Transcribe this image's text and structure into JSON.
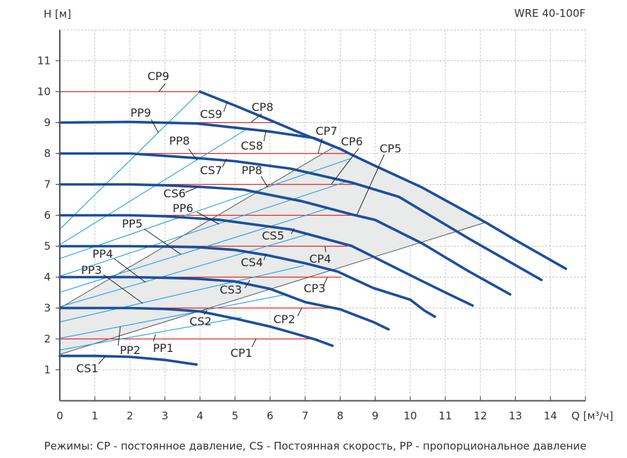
{
  "chart_data": {
    "type": "line",
    "title": "WRE 40-100F",
    "xlabel": "Q [м³/ч]",
    "ylabel": "H [м]",
    "xlim": [
      0,
      15
    ],
    "ylim": [
      0,
      12
    ],
    "x_ticks": [
      "0",
      "1",
      "2",
      "3",
      "4",
      "5",
      "6",
      "7",
      "8",
      "9",
      "10",
      "11",
      "12",
      "13",
      "14"
    ],
    "y_ticks": [
      "1",
      "2",
      "3",
      "4",
      "5",
      "6",
      "7",
      "8",
      "9",
      "10",
      "11"
    ],
    "grid": true,
    "colors": {
      "cs": "#1b4f9c",
      "pp": "#1ca3e0",
      "cp": "#e8262b",
      "area": "#e9eaea",
      "area_edge": "#555555"
    },
    "cs_curves": [
      {
        "name": "CS1",
        "points": [
          [
            0,
            1.45
          ],
          [
            1,
            1.45
          ],
          [
            2,
            1.42
          ],
          [
            3,
            1.32
          ],
          [
            3.9,
            1.17
          ]
        ]
      },
      {
        "name": "CS2",
        "points": [
          [
            0,
            3.0
          ],
          [
            2,
            3.0
          ],
          [
            3,
            2.97
          ],
          [
            4,
            2.89
          ],
          [
            5,
            2.66
          ],
          [
            6,
            2.4
          ],
          [
            6.6,
            2.21
          ],
          [
            7.3,
            1.98
          ],
          [
            7.78,
            1.78
          ]
        ]
      },
      {
        "name": "CS3",
        "points": [
          [
            0,
            4.0
          ],
          [
            2,
            4.0
          ],
          [
            3,
            3.98
          ],
          [
            4,
            3.94
          ],
          [
            5,
            3.86
          ],
          [
            6,
            3.62
          ],
          [
            7,
            3.19
          ],
          [
            8,
            2.96
          ],
          [
            8.94,
            2.55
          ],
          [
            9.38,
            2.31
          ]
        ]
      },
      {
        "name": "CS4",
        "points": [
          [
            0,
            5.0
          ],
          [
            2,
            5.0
          ],
          [
            3,
            4.99
          ],
          [
            3.92,
            4.97
          ],
          [
            5,
            4.88
          ],
          [
            5.92,
            4.71
          ],
          [
            7,
            4.45
          ],
          [
            7.93,
            4.18
          ],
          [
            8.94,
            3.65
          ],
          [
            10,
            3.27
          ],
          [
            10.4,
            2.92
          ],
          [
            10.7,
            2.72
          ]
        ]
      },
      {
        "name": "CS5",
        "points": [
          [
            0,
            6.0
          ],
          [
            2,
            6.0
          ],
          [
            3,
            5.97
          ],
          [
            4.58,
            5.85
          ],
          [
            6.59,
            5.54
          ],
          [
            8.33,
            5.01
          ],
          [
            9,
            4.63
          ],
          [
            10.34,
            3.87
          ],
          [
            11.1,
            3.45
          ],
          [
            11.78,
            3.08
          ]
        ]
      },
      {
        "name": "CS6",
        "points": [
          [
            0,
            7.0
          ],
          [
            2,
            7.0
          ],
          [
            3,
            6.97
          ],
          [
            4,
            6.92
          ],
          [
            5.25,
            6.83
          ],
          [
            6.93,
            6.45
          ],
          [
            8.33,
            6.03
          ],
          [
            9,
            5.85
          ],
          [
            10.34,
            5.09
          ],
          [
            11.68,
            4.18
          ],
          [
            12.85,
            3.44
          ]
        ]
      },
      {
        "name": "CS7",
        "points": [
          [
            0,
            8.0
          ],
          [
            2,
            8.0
          ],
          [
            3.92,
            7.85
          ],
          [
            5,
            7.75
          ],
          [
            6.59,
            7.51
          ],
          [
            8.33,
            7.06
          ],
          [
            9.67,
            6.6
          ],
          [
            11.68,
            5.24
          ],
          [
            13.74,
            3.91
          ]
        ]
      },
      {
        "name": "CS8",
        "points": [
          [
            0,
            9.0
          ],
          [
            2,
            9.02
          ],
          [
            3.92,
            8.97
          ],
          [
            5.92,
            8.72
          ],
          [
            7.26,
            8.5
          ],
          [
            7.8,
            8.24
          ]
        ]
      },
      {
        "name": "CS9",
        "points": [
          [
            4,
            10
          ],
          [
            5,
            9.55
          ],
          [
            6,
            9.08
          ],
          [
            7,
            8.6
          ],
          [
            8,
            8.15
          ],
          [
            8.33,
            7.96
          ],
          [
            9,
            7.6
          ],
          [
            10.34,
            6.9
          ],
          [
            12.15,
            5.77
          ],
          [
            13,
            5.2
          ],
          [
            14.44,
            4.27
          ]
        ]
      }
    ],
    "cp_lines": [
      {
        "name": "CP1",
        "h": 2,
        "q_max": 7.26
      },
      {
        "name": "CP2",
        "h": 3,
        "q_max": 7.73
      },
      {
        "name": "CP3",
        "h": 4,
        "q_max": 8.03
      },
      {
        "name": "CP4",
        "h": 5,
        "q_max": 8.2
      },
      {
        "name": "CP5",
        "h": 6,
        "q_max": 8.47
      },
      {
        "name": "CP6",
        "h": 7,
        "q_max": 8.47
      },
      {
        "name": "CP7",
        "h": 8,
        "q_max": 8.2
      },
      {
        "name": "CP8",
        "h": 9,
        "q_max": 6.16
      },
      {
        "name": "CP9",
        "h": 10,
        "q_max": 4.0
      }
    ],
    "pp_lines": [
      {
        "name": "PP1",
        "points": [
          [
            0,
            1.64
          ],
          [
            5.19,
            2.7
          ]
        ]
      },
      {
        "name": "PP2",
        "points": [
          [
            0,
            2.02
          ],
          [
            6.5,
            3.45
          ]
        ]
      },
      {
        "name": "PP3",
        "points": [
          [
            0,
            2.55
          ],
          [
            6.96,
            4.37
          ]
        ]
      },
      {
        "name": "PP4",
        "points": [
          [
            0,
            3.04
          ],
          [
            7.09,
            5.39
          ]
        ]
      },
      {
        "name": "PP5",
        "points": [
          [
            0,
            3.51
          ],
          [
            7.7,
            6.24
          ]
        ]
      },
      {
        "name": "PP6",
        "points": [
          [
            0,
            4.03
          ],
          [
            8.2,
            7.1
          ]
        ]
      },
      {
        "name": "PP8",
        "points": [
          [
            0,
            4.6
          ],
          [
            8.33,
            7.85
          ]
        ]
      },
      {
        "name": "PP8",
        "points": [
          [
            0,
            5.05
          ],
          [
            5.35,
            8.8
          ]
        ]
      },
      {
        "name": "PP9",
        "points": [
          [
            0,
            5.55
          ],
          [
            4.0,
            10.0
          ]
        ]
      }
    ],
    "area_edges": [
      {
        "points": [
          [
            0,
            3.0
          ],
          [
            7.8,
            8.19
          ]
        ]
      },
      {
        "points": [
          [
            0,
            1.5
          ],
          [
            12.15,
            5.77
          ]
        ]
      }
    ],
    "labels": [
      "CP9",
      "CS9",
      "CP8",
      "PP9",
      "CS8",
      "PP8",
      "CS7",
      "CP7",
      "CP6",
      "CP5",
      "PP8",
      "CS6",
      "PP6",
      "PP5",
      "CS5",
      "PP4",
      "CS4",
      "CP4",
      "PP3",
      "CS3",
      "CP3",
      "CS2",
      "CP2",
      "PP2",
      "PP1",
      "CP1",
      "CS1"
    ],
    "footnote": "Режимы: CP - постоянное давление, CS - Постоянная скорость, PP - пропорциональное давление"
  }
}
